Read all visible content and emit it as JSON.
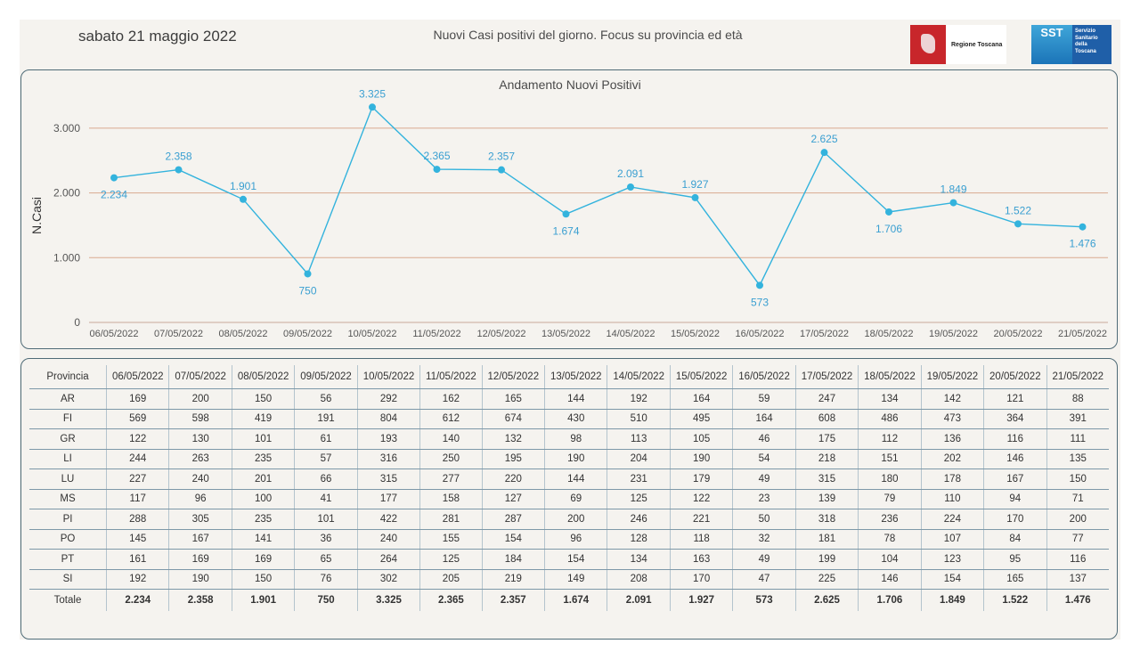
{
  "header": {
    "date": "sabato 21 maggio 2022",
    "subtitle": "Nuovi Casi positivi del giorno. Focus su provincia ed età",
    "logo_regione_text": "Regione Toscana",
    "logo_sst_text": "SST",
    "logo_sst_caption": "Servizio Sanitario della Toscana"
  },
  "chart_data": {
    "type": "line",
    "title": "Andamento Nuovi Positivi",
    "xlabel": "",
    "ylabel": "N.Casi",
    "ylim": [
      0,
      3000
    ],
    "yticks": [
      "0",
      "1.000",
      "2.000",
      "3.000"
    ],
    "grid": true,
    "categories": [
      "06/05/2022",
      "07/05/2022",
      "08/05/2022",
      "09/05/2022",
      "10/05/2022",
      "11/05/2022",
      "12/05/2022",
      "13/05/2022",
      "14/05/2022",
      "15/05/2022",
      "16/05/2022",
      "17/05/2022",
      "18/05/2022",
      "19/05/2022",
      "20/05/2022",
      "21/05/2022"
    ],
    "values": [
      2234,
      2358,
      1901,
      750,
      3325,
      2365,
      2357,
      1674,
      2091,
      1927,
      573,
      2625,
      1706,
      1849,
      1522,
      1476
    ],
    "data_labels": [
      "2.234",
      "2.358",
      "1.901",
      "750",
      "3.325",
      "2.365",
      "2.357",
      "1.674",
      "2.091",
      "1.927",
      "573",
      "2.625",
      "1.706",
      "1.849",
      "1.522",
      "1.476"
    ],
    "color": "#33b3dd"
  },
  "table": {
    "header": [
      "Provincia",
      "06/05/2022",
      "07/05/2022",
      "08/05/2022",
      "09/05/2022",
      "10/05/2022",
      "11/05/2022",
      "12/05/2022",
      "13/05/2022",
      "14/05/2022",
      "15/05/2022",
      "16/05/2022",
      "17/05/2022",
      "18/05/2022",
      "19/05/2022",
      "20/05/2022",
      "21/05/2022"
    ],
    "rows": [
      [
        "AR",
        "169",
        "200",
        "150",
        "56",
        "292",
        "162",
        "165",
        "144",
        "192",
        "164",
        "59",
        "247",
        "134",
        "142",
        "121",
        "88"
      ],
      [
        "FI",
        "569",
        "598",
        "419",
        "191",
        "804",
        "612",
        "674",
        "430",
        "510",
        "495",
        "164",
        "608",
        "486",
        "473",
        "364",
        "391"
      ],
      [
        "GR",
        "122",
        "130",
        "101",
        "61",
        "193",
        "140",
        "132",
        "98",
        "113",
        "105",
        "46",
        "175",
        "112",
        "136",
        "116",
        "111"
      ],
      [
        "LI",
        "244",
        "263",
        "235",
        "57",
        "316",
        "250",
        "195",
        "190",
        "204",
        "190",
        "54",
        "218",
        "151",
        "202",
        "146",
        "135"
      ],
      [
        "LU",
        "227",
        "240",
        "201",
        "66",
        "315",
        "277",
        "220",
        "144",
        "231",
        "179",
        "49",
        "315",
        "180",
        "178",
        "167",
        "150"
      ],
      [
        "MS",
        "117",
        "96",
        "100",
        "41",
        "177",
        "158",
        "127",
        "69",
        "125",
        "122",
        "23",
        "139",
        "79",
        "110",
        "94",
        "71"
      ],
      [
        "PI",
        "288",
        "305",
        "235",
        "101",
        "422",
        "281",
        "287",
        "200",
        "246",
        "221",
        "50",
        "318",
        "236",
        "224",
        "170",
        "200"
      ],
      [
        "PO",
        "145",
        "167",
        "141",
        "36",
        "240",
        "155",
        "154",
        "96",
        "128",
        "118",
        "32",
        "181",
        "78",
        "107",
        "84",
        "77"
      ],
      [
        "PT",
        "161",
        "169",
        "169",
        "65",
        "264",
        "125",
        "184",
        "154",
        "134",
        "163",
        "49",
        "199",
        "104",
        "123",
        "95",
        "116"
      ],
      [
        "SI",
        "192",
        "190",
        "150",
        "76",
        "302",
        "205",
        "219",
        "149",
        "208",
        "170",
        "47",
        "225",
        "146",
        "154",
        "165",
        "137"
      ]
    ],
    "total": [
      "Totale",
      "2.234",
      "2.358",
      "1.901",
      "750",
      "3.325",
      "2.365",
      "2.357",
      "1.674",
      "2.091",
      "1.927",
      "573",
      "2.625",
      "1.706",
      "1.849",
      "1.522",
      "1.476"
    ]
  }
}
